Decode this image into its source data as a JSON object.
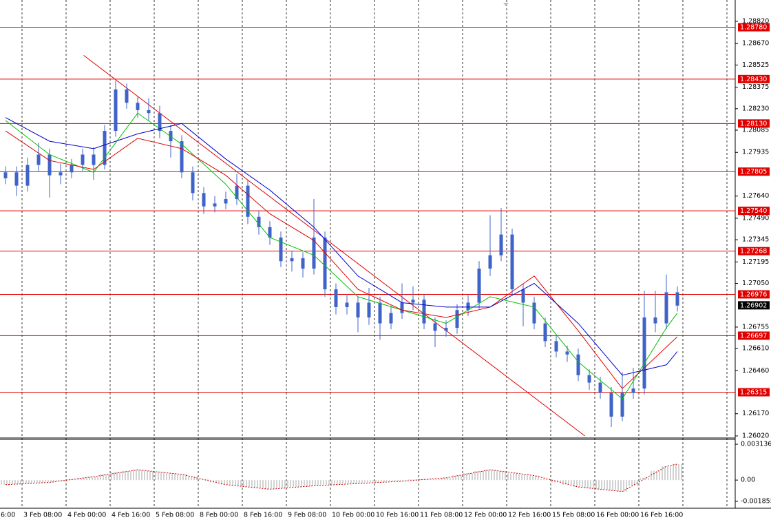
{
  "chart_data": [
    {
      "type": "candlestick",
      "categories": [
        "6:00",
        "3 Feb 08:00",
        "4 Feb 00:00",
        "4 Feb 16:00",
        "5 Feb 08:00",
        "8 Feb 00:00",
        "8 Feb 16:00",
        "9 Feb 08:00",
        "10 Feb 00:00",
        "10 Feb 16:00",
        "11 Feb 08:00",
        "12 Feb 00:00",
        "12 Feb 16:00",
        "15 Feb 08:00",
        "16 Feb 00:00",
        "16 Feb 16:00"
      ],
      "open": [
        1.2776,
        1.278,
        1.2771,
        1.2785,
        1.2792,
        1.2778,
        1.278,
        1.2785,
        1.2792,
        1.2785,
        1.2808,
        1.2836,
        1.2827,
        1.2822,
        1.282,
        1.2808,
        1.2801,
        1.278,
        1.2766,
        1.2757,
        1.2759,
        1.2762,
        1.2771,
        1.275,
        1.2743,
        1.2736,
        1.272,
        1.2722,
        1.2715,
        1.2736,
        1.2701,
        1.2689,
        1.2692,
        1.2682,
        1.2692,
        1.2678,
        1.2685,
        1.2692,
        1.2694,
        1.2678,
        1.2673,
        1.2675,
        1.2687,
        1.2692,
        1.2715,
        1.2724,
        1.2738,
        1.2701,
        1.2692,
        1.2678,
        1.2666,
        1.2659,
        1.2657,
        1.2643,
        1.2638,
        1.2631,
        1.2615,
        1.2631,
        1.2634,
        1.2682,
        1.2678,
        1.2699
      ],
      "high": [
        1.2784,
        1.2784,
        1.279,
        1.28,
        1.2796,
        1.2786,
        1.2789,
        1.2796,
        1.2797,
        1.2812,
        1.2842,
        1.284,
        1.2831,
        1.283,
        1.2825,
        1.2812,
        1.2805,
        1.2784,
        1.277,
        1.2764,
        1.2767,
        1.2779,
        1.2775,
        1.2754,
        1.2747,
        1.274,
        1.2727,
        1.2726,
        1.2762,
        1.274,
        1.2705,
        1.2697,
        1.2696,
        1.2702,
        1.2696,
        1.269,
        1.2705,
        1.2703,
        1.2698,
        1.2682,
        1.268,
        1.2691,
        1.2697,
        1.272,
        1.2751,
        1.2756,
        1.2742,
        1.2705,
        1.2696,
        1.2682,
        1.267,
        1.2663,
        1.2661,
        1.2647,
        1.2642,
        1.2635,
        1.2645,
        1.2648,
        1.27,
        1.27,
        1.2711,
        1.2703
      ],
      "low": [
        1.2772,
        1.2764,
        1.2767,
        1.2781,
        1.2763,
        1.2772,
        1.2776,
        1.2781,
        1.2775,
        1.2782,
        1.2804,
        1.2823,
        1.2817,
        1.2815,
        1.2803,
        1.279,
        1.2776,
        1.2761,
        1.2752,
        1.2753,
        1.2755,
        1.2758,
        1.2745,
        1.2738,
        1.2731,
        1.2716,
        1.2713,
        1.2709,
        1.2711,
        1.2696,
        1.2684,
        1.2684,
        1.2672,
        1.2677,
        1.2667,
        1.2674,
        1.2681,
        1.2687,
        1.2674,
        1.2662,
        1.2669,
        1.2671,
        1.2683,
        1.2688,
        1.271,
        1.272,
        1.2697,
        1.2676,
        1.2674,
        1.2662,
        1.2655,
        1.2652,
        1.2639,
        1.2633,
        1.2627,
        1.2608,
        1.2612,
        1.2627,
        1.263,
        1.2672,
        1.2674,
        1.2686
      ],
      "close": [
        1.278,
        1.2771,
        1.2785,
        1.2792,
        1.2778,
        1.278,
        1.2785,
        1.2792,
        1.2785,
        1.2808,
        1.2836,
        1.2827,
        1.2822,
        1.282,
        1.2808,
        1.2801,
        1.278,
        1.2766,
        1.2757,
        1.2759,
        1.2762,
        1.2771,
        1.275,
        1.2743,
        1.2736,
        1.272,
        1.2722,
        1.2715,
        1.2736,
        1.2701,
        1.2689,
        1.2692,
        1.2682,
        1.2692,
        1.2678,
        1.2685,
        1.2692,
        1.2694,
        1.2678,
        1.2673,
        1.2675,
        1.2687,
        1.2692,
        1.2715,
        1.2724,
        1.2738,
        1.2701,
        1.2692,
        1.2678,
        1.2666,
        1.2659,
        1.2657,
        1.2643,
        1.2638,
        1.2631,
        1.2615,
        1.2631,
        1.2634,
        1.2682,
        1.2678,
        1.2699,
        1.269
      ],
      "color": "#3f63c8",
      "ylim": [
        1.26006,
        1.28964
      ],
      "yticks": [
        {
          "value": 1.2882,
          "label": "1.28820"
        },
        {
          "value": 1.2867,
          "label": "1.28670"
        },
        {
          "value": 1.28525,
          "label": "1.28525"
        },
        {
          "value": 1.28375,
          "label": "1.28375"
        },
        {
          "value": 1.2823,
          "label": "1.28230"
        },
        {
          "value": 1.28085,
          "label": "1.28085"
        },
        {
          "value": 1.27935,
          "label": "1.27935"
        },
        {
          "value": 1.2764,
          "label": "1.27640"
        },
        {
          "value": 1.2749,
          "label": "1.27490"
        },
        {
          "value": 1.27345,
          "label": "1.27345"
        },
        {
          "value": 1.27195,
          "label": "1.27195"
        },
        {
          "value": 1.2705,
          "label": "1.27050"
        },
        {
          "value": 1.26755,
          "label": "1.26755"
        },
        {
          "value": 1.2661,
          "label": "1.26610"
        },
        {
          "value": 1.2646,
          "label": "1.26460"
        },
        {
          "value": 1.2617,
          "label": "1.26170"
        },
        {
          "value": 1.2602,
          "label": "1.26020"
        }
      ],
      "moving_averages": [
        {
          "color": "#00c000",
          "x": [
            0,
            4,
            8,
            12,
            16,
            20,
            24,
            28,
            32,
            36,
            40,
            44,
            48,
            52,
            56,
            60,
            61
          ],
          "values": [
            1.2815,
            1.2792,
            1.278,
            1.282,
            1.2799,
            1.2772,
            1.2736,
            1.2724,
            1.2696,
            1.2687,
            1.2678,
            1.2696,
            1.2689,
            1.2652,
            1.2627,
            1.2675,
            1.2685
          ]
        },
        {
          "color": "#e00000",
          "x": [
            0,
            4,
            8,
            12,
            16,
            20,
            24,
            28,
            32,
            36,
            40,
            44,
            48,
            52,
            56,
            60,
            61
          ],
          "values": [
            1.2808,
            1.2788,
            1.2782,
            1.2803,
            1.2796,
            1.2778,
            1.2752,
            1.2734,
            1.2701,
            1.2687,
            1.2682,
            1.2689,
            1.271,
            1.2673,
            1.2634,
            1.2662,
            1.2669
          ]
        },
        {
          "color": "#0000c8",
          "x": [
            0,
            4,
            8,
            12,
            16,
            20,
            24,
            28,
            32,
            36,
            40,
            44,
            48,
            52,
            56,
            60,
            61
          ],
          "values": [
            1.2817,
            1.2801,
            1.2796,
            1.2806,
            1.2813,
            1.2789,
            1.2768,
            1.2743,
            1.271,
            1.2692,
            1.2689,
            1.2689,
            1.2705,
            1.2678,
            1.2643,
            1.265,
            1.2659
          ]
        }
      ],
      "trendline": {
        "color": "#e00000",
        "x": [
          7.1,
          52.6
        ],
        "values": [
          1.2859,
          1.2602
        ]
      },
      "levels": [
        {
          "value": 1.2878,
          "label": "1.28780"
        },
        {
          "value": 1.2843,
          "label": "1.28430"
        },
        {
          "value": 1.2813,
          "label": "1.28130"
        },
        {
          "value": 1.27805,
          "label": "1.27805"
        },
        {
          "value": 1.2754,
          "label": "1.27540"
        },
        {
          "value": 1.27268,
          "label": "1.27268"
        },
        {
          "value": 1.26976,
          "label": "1.26976"
        },
        {
          "value": 1.26697,
          "label": "1.26697"
        },
        {
          "value": 1.26315,
          "label": "1.26315"
        }
      ],
      "level_color": "#e00000",
      "current_price": {
        "value": 1.26902,
        "label": "1.26902"
      }
    },
    {
      "type": "oscillator",
      "values": [
        -0.0004,
        -0.00035,
        -0.0003,
        -0.00025,
        -0.0002,
        -0.0001,
        0,
        0.0002,
        0.0003,
        0.0005,
        0.0007,
        0.0008,
        0.0009,
        0.0008,
        0.0007,
        0.0006,
        0.0005,
        0.0003,
        0,
        -0.0002,
        -0.0004,
        -0.0005,
        -0.0006,
        -0.0007,
        -0.0008,
        -0.0007,
        -0.0006,
        -0.0006,
        -0.0005,
        -0.0004,
        -0.0004,
        -0.0003,
        -0.0003,
        -0.0002,
        -0.0002,
        -0.0001,
        -0.0001,
        0,
        0.0001,
        0.0001,
        0.0002,
        0.0004,
        0.0006,
        0.0008,
        0.0009,
        0.0008,
        0.0006,
        0.0005,
        0.0004,
        0.0001,
        -0.0002,
        -0.0004,
        -0.0006,
        -0.0007,
        -0.0008,
        -0.0009,
        -0.001,
        -0.0005,
        0.0002,
        0.0008,
        0.0012,
        0.0014
      ],
      "color": "#b4b4b4",
      "signal": {
        "color": "#cc0000",
        "x": [
          0,
          4,
          8,
          12,
          16,
          20,
          24,
          28,
          32,
          36,
          40,
          44,
          48,
          52,
          56,
          60,
          61
        ],
        "values": [
          -0.0004,
          -0.0002,
          0.0003,
          0.0009,
          0.0005,
          -0.0004,
          -0.0008,
          -0.0005,
          -0.0003,
          -0.0001,
          0.0002,
          0.0009,
          0.0004,
          -0.0006,
          -0.001,
          0.0012,
          0.0014
        ]
      },
      "ylim": [
        -0.00246,
        0.00344
      ],
      "yticks": [
        0.003136,
        {
          "value": 0,
          "label": "0.00"
        },
        -0.001855
      ]
    }
  ]
}
